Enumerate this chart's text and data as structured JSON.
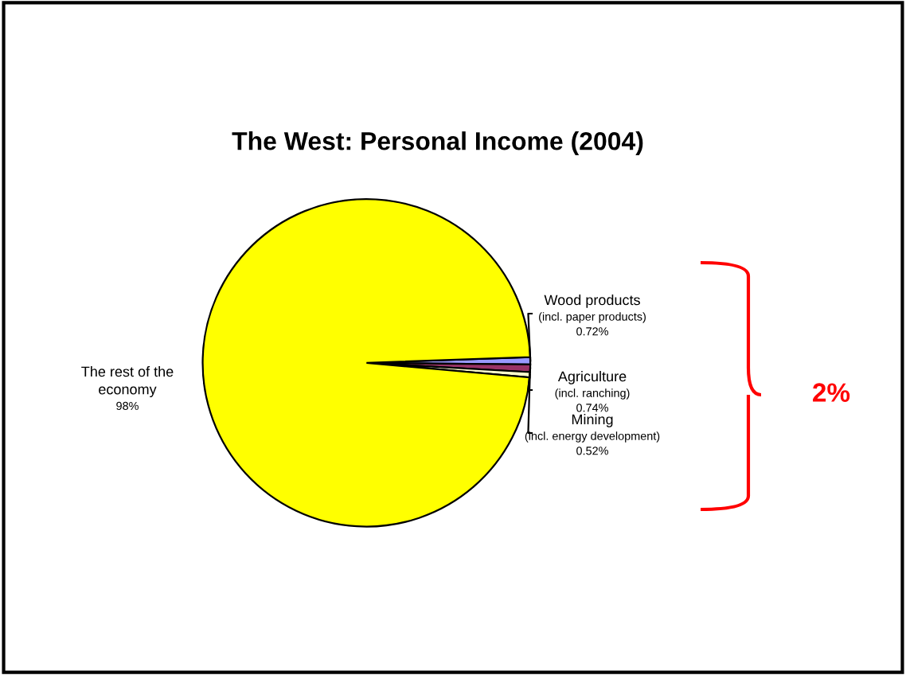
{
  "chart_data": {
    "type": "pie",
    "title": "The West: Personal Income (2004)",
    "categories": [
      "Wood products\n(incl. paper products)",
      "Agriculture\n(incl. ranching)",
      "Mining\n(incl. energy development)",
      "The rest of the\neconomy"
    ],
    "values": [
      0.72,
      0.74,
      0.52,
      98
    ],
    "value_labels": [
      "0.72%",
      "0.74%",
      "0.52%",
      "98%"
    ],
    "colors": [
      "#9999ff",
      "#993366",
      "#ffffcc",
      "#ffff00"
    ],
    "annotations": [
      "2%"
    ]
  }
}
